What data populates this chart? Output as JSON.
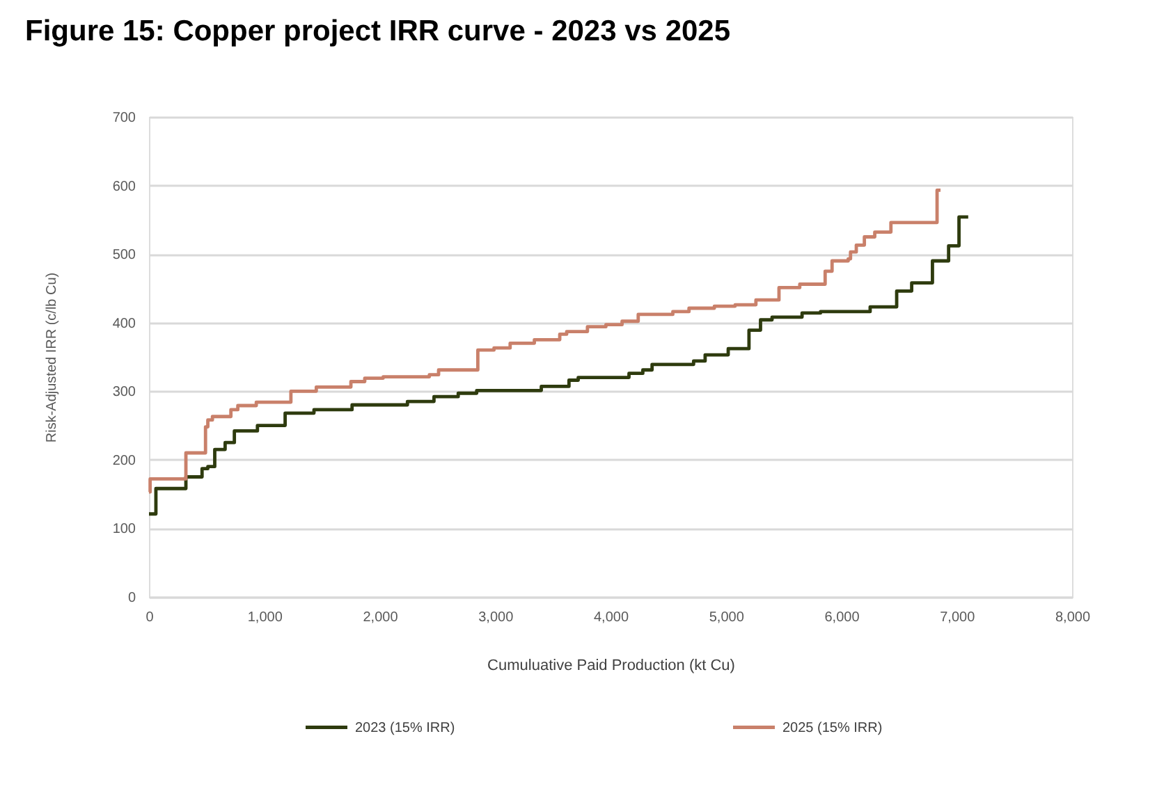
{
  "chart_data": {
    "type": "step",
    "title": "Figure 15: Copper project IRR curve - 2023 vs 2025",
    "xlabel": "Cumuluative Paid Production (kt Cu)",
    "ylabel": "Risk-Adjusted IRR (c/lb Cu)",
    "xlim": [
      0,
      8000
    ],
    "xticks": [
      0,
      {
        "value": 1000,
        "label": "1,000"
      },
      {
        "value": 2000,
        "label": "2,000"
      },
      {
        "value": 3000,
        "label": "3,000"
      },
      {
        "value": 4000,
        "label": "4,000"
      },
      {
        "value": 5000,
        "label": "5,000"
      },
      {
        "value": 6000,
        "label": "6,000"
      },
      {
        "value": 7000,
        "label": "7,000"
      },
      {
        "value": 8000,
        "label": "8,000"
      }
    ],
    "ylim": [
      0,
      700
    ],
    "yticks": [
      0,
      100,
      200,
      300,
      400,
      500,
      600,
      700
    ],
    "grid": "y",
    "legend": "bottom",
    "line_style": "solid",
    "series": [
      {
        "name": "2023 (15% IRR)",
        "color": "#2e3b0e",
        "x": [
          0,
          60,
          320,
          460,
          510,
          570,
          660,
          740,
          940,
          1180,
          1430,
          1760,
          2240,
          2470,
          2680,
          2840,
          3400,
          3640,
          3720,
          4160,
          4280,
          4360,
          4720,
          4820,
          5020,
          5200,
          5300,
          5400,
          5660,
          5820,
          6250,
          6480,
          6610,
          6790,
          6930,
          7020,
          7100
        ],
        "values": [
          121,
          158,
          175,
          187,
          190,
          215,
          225,
          242,
          250,
          268,
          273,
          280,
          285,
          292,
          297,
          301,
          307,
          316,
          320,
          326,
          331,
          339,
          344,
          353,
          362,
          389,
          404,
          408,
          414,
          416,
          423,
          446,
          458,
          490,
          512,
          554,
          554
        ]
      },
      {
        "name": "2025 (15% IRR)",
        "color": "#c9806a",
        "x": [
          0,
          10,
          320,
          490,
          510,
          550,
          710,
          770,
          930,
          1230,
          1450,
          1750,
          1870,
          2030,
          2430,
          2510,
          2850,
          2990,
          3130,
          3340,
          3560,
          3620,
          3800,
          3960,
          4100,
          4240,
          4540,
          4680,
          4900,
          5080,
          5260,
          5460,
          5640,
          5860,
          5920,
          6060,
          6080,
          6130,
          6200,
          6290,
          6430,
          6830,
          6860
        ],
        "values": [
          153,
          172,
          210,
          248,
          258,
          263,
          273,
          279,
          284,
          300,
          306,
          314,
          319,
          321,
          324,
          331,
          360,
          363,
          370,
          375,
          383,
          387,
          394,
          397,
          402,
          412,
          416,
          421,
          424,
          426,
          433,
          451,
          456,
          475,
          490,
          493,
          503,
          513,
          525,
          532,
          546,
          593,
          593
        ]
      }
    ]
  }
}
